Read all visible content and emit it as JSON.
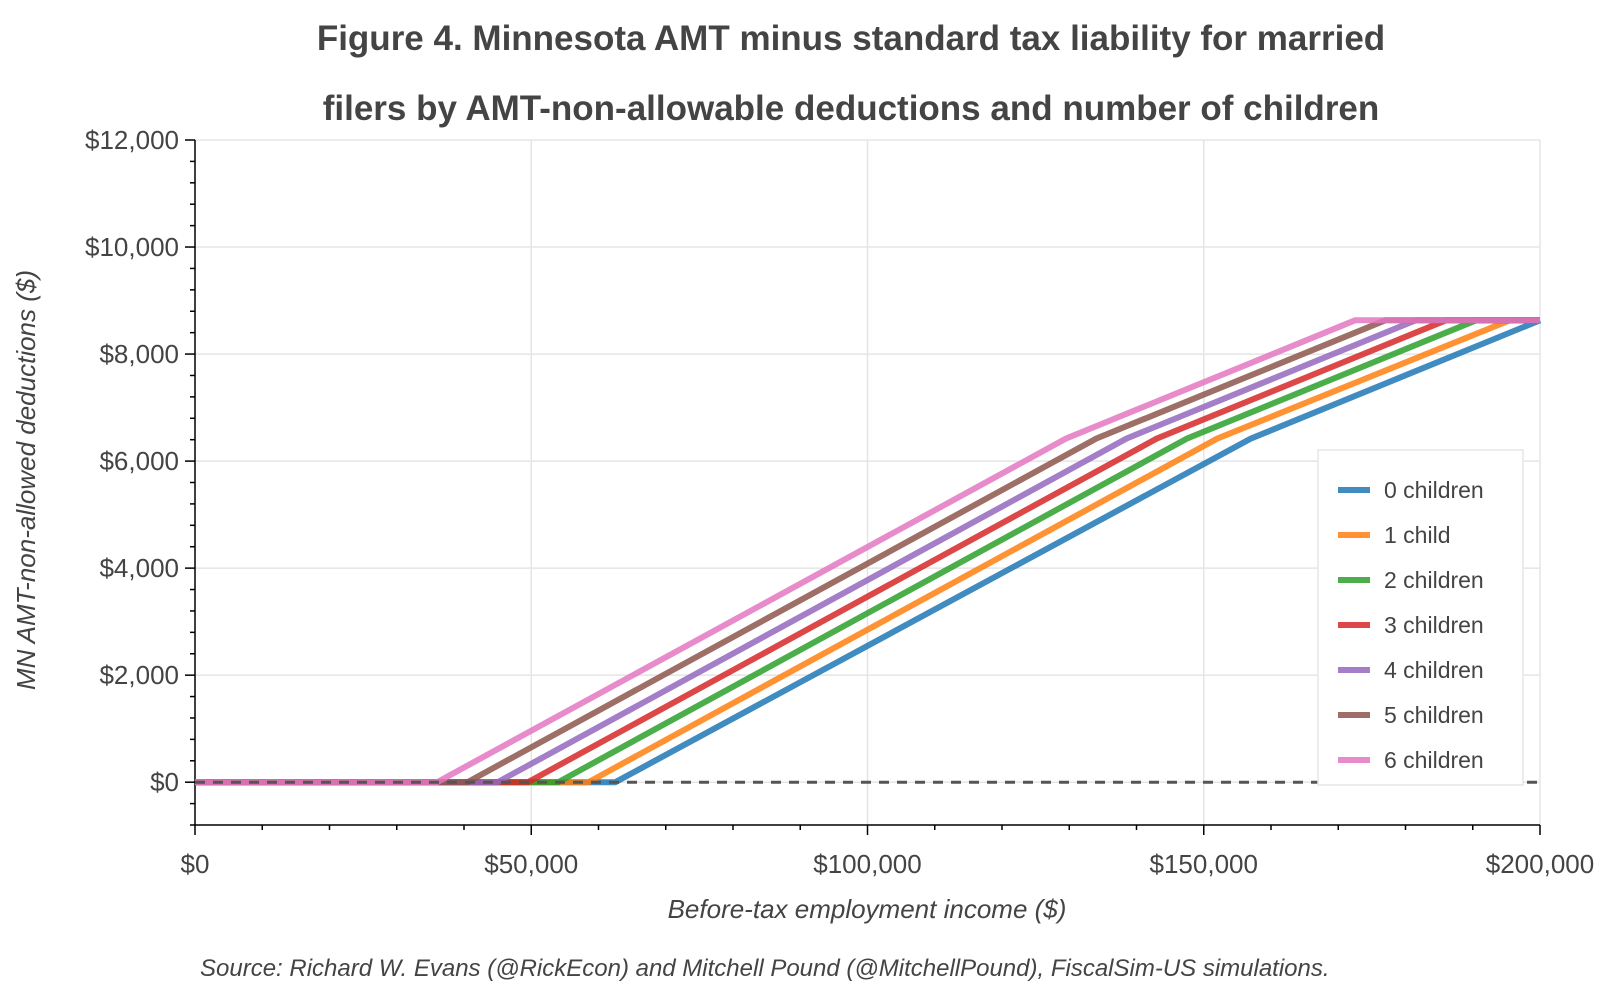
{
  "chart_data": {
    "type": "line",
    "title_lines": [
      "Figure 4. Minnesota AMT minus standard tax liability for married",
      "filers by AMT-non-allowable deductions and number of children"
    ],
    "xlabel": "Before-tax employment income ($)",
    "ylabel": "MN AMT-non-allowed deductions ($)",
    "source": "Source: Richard W. Evans (@RickEcon) and Mitchell Pound (@MitchellPound), FiscalSim-US simulations.",
    "xlim": [
      0,
      200000
    ],
    "ylim": [
      -800,
      12000
    ],
    "x_ticks": [
      0,
      50000,
      100000,
      150000,
      200000
    ],
    "x_tick_labels": [
      "$0",
      "$50,000",
      "$100,000",
      "$150,000",
      "$200,000"
    ],
    "y_ticks": [
      0,
      2000,
      4000,
      6000,
      8000,
      10000,
      12000
    ],
    "y_tick_labels": [
      "$0",
      "$2,000",
      "$4,000",
      "$6,000",
      "$8,000",
      "$10,000",
      "$12,000"
    ],
    "grid": true,
    "legend_position": "right",
    "reference_line": {
      "y": 0,
      "style": "dashed",
      "color": "#555555"
    },
    "series": [
      {
        "name": "0 children",
        "color": "#1f77b4",
        "points": [
          [
            0,
            0
          ],
          [
            62500,
            0
          ],
          [
            157000,
            6420
          ],
          [
            200000,
            8630
          ]
        ]
      },
      {
        "name": "1 child",
        "color": "#ff7f0e",
        "points": [
          [
            0,
            0
          ],
          [
            58500,
            0
          ],
          [
            152000,
            6420
          ],
          [
            195500,
            8630
          ],
          [
            200000,
            8630
          ]
        ]
      },
      {
        "name": "2 children",
        "color": "#2ca02c",
        "points": [
          [
            0,
            0
          ],
          [
            54000,
            0
          ],
          [
            147500,
            6420
          ],
          [
            190500,
            8630
          ],
          [
            200000,
            8630
          ]
        ]
      },
      {
        "name": "3 children",
        "color": "#d62728",
        "points": [
          [
            0,
            0
          ],
          [
            49500,
            0
          ],
          [
            143000,
            6420
          ],
          [
            186000,
            8630
          ],
          [
            200000,
            8630
          ]
        ]
      },
      {
        "name": "4 children",
        "color": "#9467bd",
        "points": [
          [
            0,
            0
          ],
          [
            45000,
            0
          ],
          [
            138500,
            6420
          ],
          [
            181500,
            8630
          ],
          [
            200000,
            8630
          ]
        ]
      },
      {
        "name": "5 children",
        "color": "#8c564b",
        "points": [
          [
            0,
            0
          ],
          [
            40500,
            0
          ],
          [
            134000,
            6420
          ],
          [
            177000,
            8630
          ],
          [
            200000,
            8630
          ]
        ]
      },
      {
        "name": "6 children",
        "color": "#e377c2",
        "points": [
          [
            0,
            0
          ],
          [
            36000,
            0
          ],
          [
            129500,
            6420
          ],
          [
            172500,
            8630
          ],
          [
            200000,
            8630
          ]
        ]
      }
    ]
  }
}
